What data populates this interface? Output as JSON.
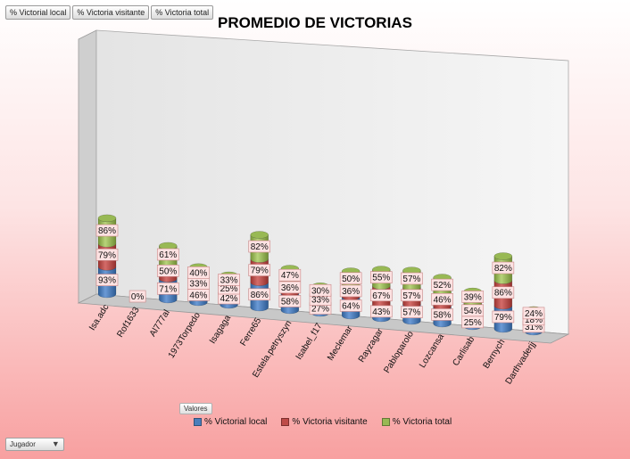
{
  "field_buttons": [
    "% Victorial local",
    "% Victoria visitante",
    "% Victoria total"
  ],
  "valores_label": "Valores",
  "jugador_label": "Jugador",
  "colors": {
    "local": "#4a7ebb",
    "visitante": "#be4b48",
    "total": "#98b954",
    "label_bg": "#fde2e2",
    "label_border": "#c98686"
  },
  "chart_data": {
    "type": "bar",
    "subtype": "3d-stacked-cylinder",
    "title": "PROMEDIO DE VICTORIAS",
    "categories": [
      "Isa.adc",
      "Rof1633",
      "Al777al",
      "1973Torpedo",
      "Isagaga",
      "Ferre65",
      "Estela.petryszyn",
      "Isabel_f17",
      "Meclemar",
      "Rayzagar",
      "Pabloparolo",
      "Lozcansa",
      "Carlisab",
      "Bernych",
      "Darthvaderjj"
    ],
    "series": [
      {
        "name": "% Victorial local",
        "values": [
          "93%",
          "0%",
          "71%",
          "46%",
          "42%",
          "86%",
          "58%",
          "27%",
          "64%",
          "43%",
          "57%",
          "58%",
          "25%",
          "79%",
          "31%"
        ]
      },
      {
        "name": "% Victoria visitante",
        "values": [
          "79%",
          "",
          "50%",
          "33%",
          "25%",
          "79%",
          "36%",
          "33%",
          "36%",
          "67%",
          "57%",
          "46%",
          "54%",
          "86%",
          "18%"
        ]
      },
      {
        "name": "% Victoria total",
        "values": [
          "86%",
          "",
          "61%",
          "40%",
          "33%",
          "82%",
          "47%",
          "30%",
          "50%",
          "55%",
          "57%",
          "52%",
          "39%",
          "82%",
          "24%"
        ]
      }
    ],
    "legend_position": "bottom"
  }
}
